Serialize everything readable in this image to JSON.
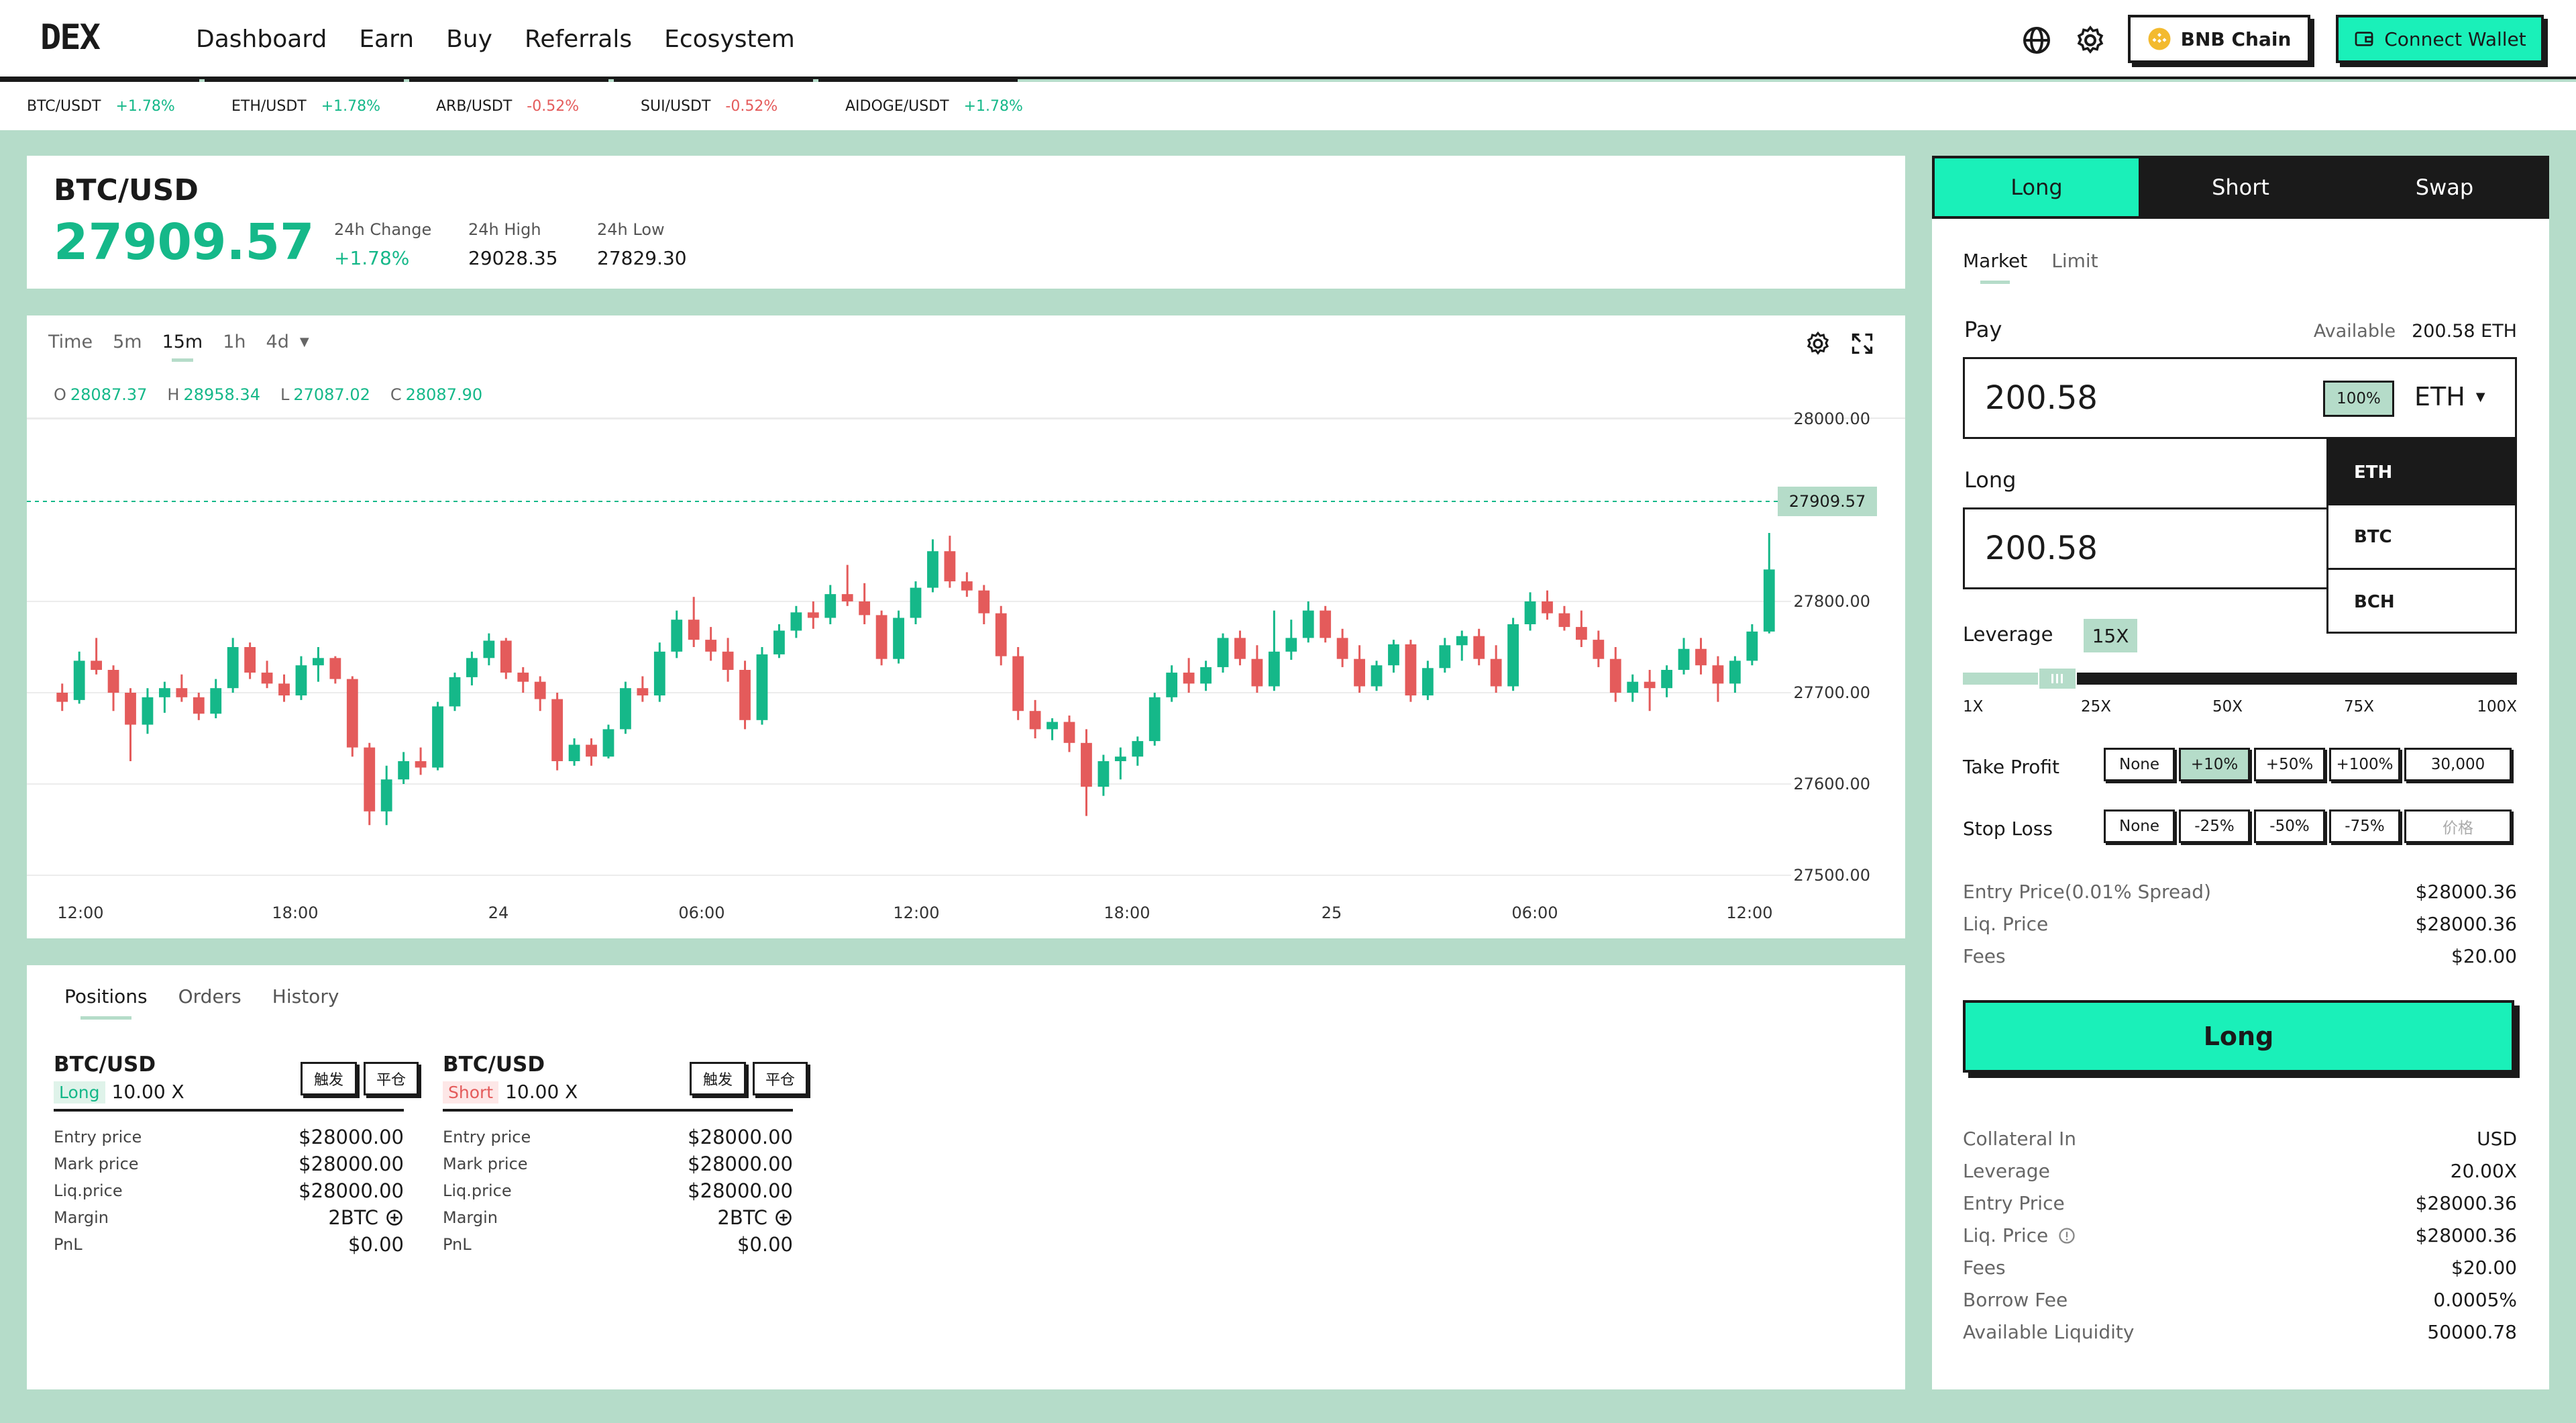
{
  "header": {
    "logo": "DEX",
    "nav": [
      "Dashboard",
      "Earn",
      "Buy",
      "Referrals",
      "Ecosystem"
    ],
    "chain_label": "BNB Chain",
    "wallet_label": "Connect Wallet",
    "icons": [
      "globe-icon",
      "gear-icon",
      "bnb-icon",
      "wallet-icon"
    ]
  },
  "tickers": [
    {
      "pair": "BTC/USDT",
      "change": "+1.78%"
    },
    {
      "pair": "ETH/USDT",
      "change": "+1.78%"
    },
    {
      "pair": "ARB/USDT",
      "change": "-0.52%"
    },
    {
      "pair": "SUI/USDT",
      "change": "-0.52%"
    },
    {
      "pair": "AIDOGE/USDT",
      "change": "+1.78%"
    }
  ],
  "market": {
    "pair": "BTC/USD",
    "price": "27909.57",
    "change_label": "24h Change",
    "change_value": "+1.78%",
    "high_label": "24h High",
    "high_value": "29028.35",
    "low_label": "24h Low",
    "low_value": "27829.30"
  },
  "chart": {
    "timeframes": [
      "Time",
      "5m",
      "15m",
      "1h",
      "4d"
    ],
    "active_timeframe": "15m",
    "ohlc": {
      "o_label": "O",
      "o": "28087.37",
      "h_label": "H",
      "h": "28958.34",
      "l_label": "L",
      "l": "27087.02",
      "c_label": "C",
      "c": "28087.90"
    },
    "current_price_label": "27909.57"
  },
  "chart_data": {
    "type": "candlestick",
    "y_ticks": [
      "28000.00",
      "27800.00",
      "27700.00",
      "27600.00",
      "27500.00"
    ],
    "x_ticks": [
      "12:00",
      "18:00",
      "24",
      "06:00",
      "12:00",
      "18:00",
      "25",
      "06:00",
      "12:00"
    ],
    "current_price": 27909.57,
    "candles": [
      [
        27700,
        27710,
        27680,
        27690
      ],
      [
        27692,
        27745,
        27688,
        27735
      ],
      [
        27735,
        27760,
        27720,
        27725
      ],
      [
        27725,
        27730,
        27680,
        27700
      ],
      [
        27700,
        27705,
        27625,
        27665
      ],
      [
        27665,
        27705,
        27655,
        27695
      ],
      [
        27695,
        27712,
        27678,
        27705
      ],
      [
        27705,
        27720,
        27690,
        27695
      ],
      [
        27695,
        27700,
        27670,
        27677
      ],
      [
        27677,
        27715,
        27672,
        27705
      ],
      [
        27705,
        27760,
        27700,
        27750
      ],
      [
        27750,
        27755,
        27715,
        27722
      ],
      [
        27722,
        27735,
        27705,
        27710
      ],
      [
        27710,
        27720,
        27690,
        27697
      ],
      [
        27697,
        27740,
        27692,
        27730
      ],
      [
        27730,
        27750,
        27712,
        27738
      ],
      [
        27738,
        27740,
        27710,
        27715
      ],
      [
        27715,
        27718,
        27630,
        27640
      ],
      [
        27640,
        27645,
        27555,
        27570
      ],
      [
        27570,
        27620,
        27555,
        27605
      ],
      [
        27605,
        27635,
        27600,
        27625
      ],
      [
        27625,
        27640,
        27610,
        27618
      ],
      [
        27618,
        27690,
        27615,
        27685
      ],
      [
        27685,
        27722,
        27680,
        27717
      ],
      [
        27717,
        27745,
        27708,
        27738
      ],
      [
        27738,
        27765,
        27730,
        27757
      ],
      [
        27757,
        27760,
        27715,
        27722
      ],
      [
        27722,
        27728,
        27700,
        27712
      ],
      [
        27712,
        27718,
        27680,
        27693
      ],
      [
        27693,
        27700,
        27615,
        27625
      ],
      [
        27625,
        27650,
        27620,
        27643
      ],
      [
        27643,
        27650,
        27620,
        27630
      ],
      [
        27630,
        27665,
        27628,
        27660
      ],
      [
        27660,
        27712,
        27655,
        27705
      ],
      [
        27705,
        27718,
        27690,
        27697
      ],
      [
        27697,
        27755,
        27690,
        27745
      ],
      [
        27745,
        27790,
        27738,
        27780
      ],
      [
        27780,
        27805,
        27750,
        27758
      ],
      [
        27758,
        27772,
        27735,
        27745
      ],
      [
        27745,
        27760,
        27712,
        27725
      ],
      [
        27725,
        27735,
        27660,
        27670
      ],
      [
        27670,
        27750,
        27665,
        27742
      ],
      [
        27742,
        27775,
        27738,
        27768
      ],
      [
        27768,
        27795,
        27760,
        27788
      ],
      [
        27788,
        27800,
        27770,
        27782
      ],
      [
        27782,
        27818,
        27775,
        27808
      ],
      [
        27808,
        27840,
        27795,
        27800
      ],
      [
        27800,
        27820,
        27775,
        27785
      ],
      [
        27785,
        27790,
        27730,
        27737
      ],
      [
        27737,
        27790,
        27732,
        27782
      ],
      [
        27782,
        27822,
        27775,
        27815
      ],
      [
        27815,
        27868,
        27810,
        27855
      ],
      [
        27855,
        27872,
        27815,
        27822
      ],
      [
        27822,
        27832,
        27805,
        27812
      ],
      [
        27812,
        27818,
        27775,
        27787
      ],
      [
        27787,
        27795,
        27730,
        27740
      ],
      [
        27740,
        27750,
        27670,
        27680
      ],
      [
        27680,
        27692,
        27650,
        27660
      ],
      [
        27660,
        27672,
        27648,
        27668
      ],
      [
        27668,
        27675,
        27635,
        27645
      ],
      [
        27645,
        27660,
        27565,
        27597
      ],
      [
        27597,
        27632,
        27587,
        27625
      ],
      [
        27625,
        27640,
        27605,
        27630
      ],
      [
        27630,
        27652,
        27620,
        27647
      ],
      [
        27647,
        27700,
        27642,
        27695
      ],
      [
        27695,
        27730,
        27690,
        27722
      ],
      [
        27722,
        27738,
        27700,
        27710
      ],
      [
        27710,
        27735,
        27702,
        27728
      ],
      [
        27728,
        27765,
        27722,
        27760
      ],
      [
        27760,
        27768,
        27730,
        27737
      ],
      [
        27737,
        27752,
        27700,
        27707
      ],
      [
        27707,
        27790,
        27702,
        27745
      ],
      [
        27745,
        27780,
        27736,
        27760
      ],
      [
        27760,
        27800,
        27755,
        27790
      ],
      [
        27790,
        27795,
        27755,
        27760
      ],
      [
        27760,
        27770,
        27728,
        27737
      ],
      [
        27737,
        27752,
        27700,
        27707
      ],
      [
        27707,
        27735,
        27702,
        27730
      ],
      [
        27730,
        27758,
        27722,
        27753
      ],
      [
        27753,
        27758,
        27690,
        27697
      ],
      [
        27697,
        27735,
        27692,
        27727
      ],
      [
        27727,
        27760,
        27722,
        27752
      ],
      [
        27752,
        27768,
        27735,
        27762
      ],
      [
        27762,
        27770,
        27730,
        27737
      ],
      [
        27737,
        27752,
        27700,
        27707
      ],
      [
        27707,
        27782,
        27702,
        27775
      ],
      [
        27775,
        27810,
        27768,
        27800
      ],
      [
        27800,
        27812,
        27780,
        27787
      ],
      [
        27787,
        27795,
        27768,
        27772
      ],
      [
        27772,
        27790,
        27750,
        27758
      ],
      [
        27758,
        27768,
        27728,
        27737
      ],
      [
        27737,
        27750,
        27690,
        27700
      ],
      [
        27700,
        27720,
        27690,
        27712
      ],
      [
        27712,
        27725,
        27680,
        27705
      ],
      [
        27705,
        27730,
        27695,
        27725
      ],
      [
        27725,
        27760,
        27720,
        27748
      ],
      [
        27748,
        27760,
        27720,
        27730
      ],
      [
        27730,
        27740,
        27690,
        27710
      ],
      [
        27710,
        27740,
        27700,
        27735
      ],
      [
        27735,
        27775,
        27730,
        27767
      ],
      [
        27767,
        27875,
        27765,
        27835
      ]
    ]
  },
  "positions": {
    "tabs": [
      "Positions",
      "Orders",
      "History"
    ],
    "trigger_label": "触发",
    "close_label": "平仓",
    "cards": [
      {
        "pair": "BTC/USD",
        "side": "Long",
        "leverage": "10.00 X",
        "rows": [
          {
            "label": "Entry price",
            "value": "$28000.00"
          },
          {
            "label": "Mark price",
            "value": "$28000.00"
          },
          {
            "label": "Liq.price",
            "value": "$28000.00"
          },
          {
            "label": "Margin",
            "value": "2BTC"
          },
          {
            "label": "PnL",
            "value": "$0.00"
          }
        ]
      },
      {
        "pair": "BTC/USD",
        "side": "Short",
        "leverage": "10.00 X",
        "rows": [
          {
            "label": "Entry price",
            "value": "$28000.00"
          },
          {
            "label": "Mark price",
            "value": "$28000.00"
          },
          {
            "label": "Liq.price",
            "value": "$28000.00"
          },
          {
            "label": "Margin",
            "value": "2BTC"
          },
          {
            "label": "PnL",
            "value": "$0.00"
          }
        ]
      }
    ]
  },
  "trade": {
    "tabs": [
      "Long",
      "Short",
      "Swap"
    ],
    "order_types": [
      "Market",
      "Limit"
    ],
    "pay_label": "Pay",
    "available_label": "Available",
    "available_value": "200.58 ETH",
    "pay_value": "200.58",
    "pct_label": "100%",
    "token": "ETH",
    "token_options": [
      "ETH",
      "BTC",
      "BCH"
    ],
    "long_label": "Long",
    "long_value": "200.58",
    "leverage_label": "Leverage",
    "leverage_value": "15X",
    "leverage_fraction": 0.14,
    "leverage_marks": [
      "1X",
      "25X",
      "50X",
      "75X",
      "100X"
    ],
    "tp_label": "Take Profit",
    "tp_options": [
      "None",
      "+10%",
      "+50%",
      "+100%",
      "30,000"
    ],
    "sl_label": "Stop Loss",
    "sl_options": [
      "None",
      "-25%",
      "-50%",
      "-75%",
      "价格"
    ],
    "summary": [
      {
        "label": "Entry Price(0.01% Spread)",
        "value": "$28000.36"
      },
      {
        "label": "Liq. Price",
        "value": "$28000.36"
      },
      {
        "label": "Fees",
        "value": "$20.00"
      }
    ],
    "submit_label": "Long",
    "details": [
      {
        "label": "Collateral In",
        "value": "USD"
      },
      {
        "label": "Leverage",
        "value": "20.00X"
      },
      {
        "label": "Entry Price",
        "value": "$28000.36"
      },
      {
        "label": "Liq. Price",
        "value": "$28000.36"
      },
      {
        "label": "Fees",
        "value": "$20.00"
      },
      {
        "label": "Borrow Fee",
        "value": "0.0005%"
      },
      {
        "label": "Available Liquidity",
        "value": "50000.78"
      }
    ],
    "colors": {
      "accent": "#1af0b9",
      "up": "#15b889",
      "down": "#e45b5b"
    }
  }
}
